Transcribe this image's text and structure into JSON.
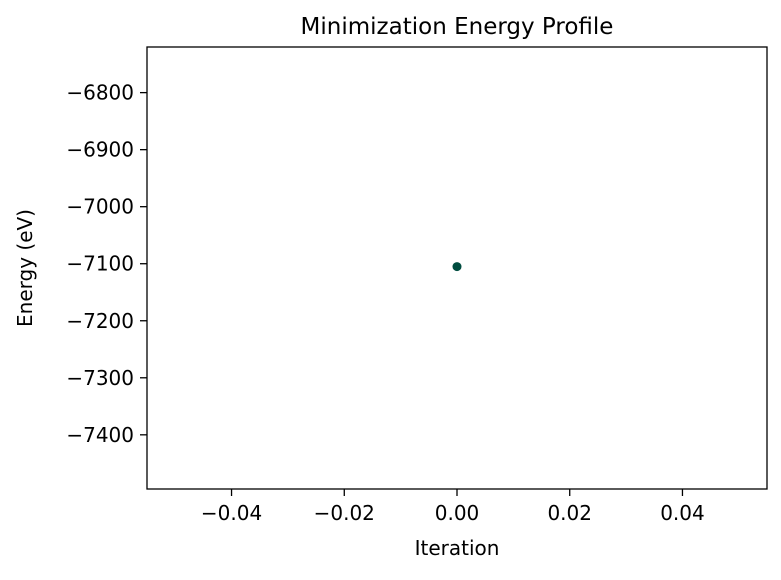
{
  "chart_data": {
    "type": "scatter",
    "title": "Minimization Energy Profile",
    "xlabel": "Iteration",
    "ylabel": "Energy (eV)",
    "xlim": [
      -0.055,
      0.055
    ],
    "ylim": [
      -7495,
      -6720
    ],
    "xticks": [
      -0.04,
      -0.02,
      0.0,
      0.02,
      0.04
    ],
    "xtick_labels": [
      "−0.04",
      "−0.02",
      "0.00",
      "0.02",
      "0.04"
    ],
    "yticks": [
      -6800,
      -6900,
      -7000,
      -7100,
      -7200,
      -7300,
      -7400
    ],
    "ytick_labels": [
      "−6800",
      "−6900",
      "−7000",
      "−7100",
      "−7200",
      "−7300",
      "−7400"
    ],
    "grid": false,
    "legend": "none",
    "series": [
      {
        "color": "#004c3f",
        "points": [
          {
            "x": 0.0,
            "y": -7105
          }
        ]
      }
    ]
  }
}
